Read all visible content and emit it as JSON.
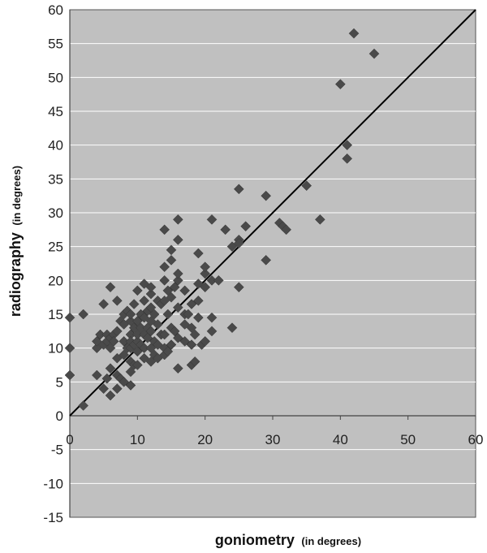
{
  "chart_data": {
    "type": "scatter",
    "title": "",
    "xlabel": "goniometry",
    "xlabel_unit": "(in degrees)",
    "ylabel": "radiography",
    "ylabel_unit": "(in degrees)",
    "xlim": [
      0,
      60
    ],
    "ylim": [
      -15,
      60
    ],
    "x_ticks": [
      "0",
      "10",
      "20",
      "30",
      "40",
      "50",
      "60"
    ],
    "y_ticks": [
      "-15",
      "-10",
      "-5",
      "0",
      "5",
      "10",
      "15",
      "20",
      "25",
      "30",
      "35",
      "40",
      "45",
      "50",
      "55",
      "60"
    ],
    "grid": "horizontal",
    "background_color": "#c0c0c0",
    "marker_color": "#4a4a4a",
    "marker": "diamond",
    "reference_line": {
      "from": [
        0,
        0
      ],
      "to": [
        60,
        60
      ]
    },
    "legend": "none",
    "points": [
      [
        0,
        14.5
      ],
      [
        0,
        10
      ],
      [
        0,
        6
      ],
      [
        2,
        15
      ],
      [
        2,
        1.5
      ],
      [
        4,
        6
      ],
      [
        4,
        10
      ],
      [
        4,
        11
      ],
      [
        4.5,
        12
      ],
      [
        5,
        10.5
      ],
      [
        5,
        4
      ],
      [
        5,
        16.5
      ],
      [
        5.5,
        5.5
      ],
      [
        5.5,
        12
      ],
      [
        5.5,
        11
      ],
      [
        6,
        3
      ],
      [
        6,
        7
      ],
      [
        6,
        10
      ],
      [
        6,
        11.5
      ],
      [
        6,
        19
      ],
      [
        6.5,
        12
      ],
      [
        6.5,
        11
      ],
      [
        7,
        4
      ],
      [
        7,
        6
      ],
      [
        7,
        8.5
      ],
      [
        7,
        12.5
      ],
      [
        7,
        17
      ],
      [
        7.5,
        14
      ],
      [
        7.5,
        5.5
      ],
      [
        8,
        5
      ],
      [
        8,
        9
      ],
      [
        8,
        11
      ],
      [
        8,
        15
      ],
      [
        8,
        13.5
      ],
      [
        8.5,
        10
      ],
      [
        8.5,
        15.5
      ],
      [
        9,
        4.5
      ],
      [
        9,
        6.5
      ],
      [
        9,
        8
      ],
      [
        9,
        10
      ],
      [
        9,
        12
      ],
      [
        9,
        14
      ],
      [
        9,
        15
      ],
      [
        9,
        11
      ],
      [
        9.5,
        13
      ],
      [
        9.5,
        10.5
      ],
      [
        9.5,
        7.5
      ],
      [
        9.5,
        16.5
      ],
      [
        10,
        9.5
      ],
      [
        10,
        11
      ],
      [
        10,
        12
      ],
      [
        10,
        14
      ],
      [
        10,
        7.5
      ],
      [
        10,
        18.5
      ],
      [
        10.5,
        10.5
      ],
      [
        10.5,
        13
      ],
      [
        10.5,
        15
      ],
      [
        11,
        8.5
      ],
      [
        11,
        10
      ],
      [
        11,
        12
      ],
      [
        11,
        14.5
      ],
      [
        11,
        17
      ],
      [
        11,
        19.5
      ],
      [
        11.5,
        11.5
      ],
      [
        11.5,
        15.5
      ],
      [
        11.5,
        13
      ],
      [
        12,
        8
      ],
      [
        12,
        10
      ],
      [
        12,
        12.5
      ],
      [
        12,
        14
      ],
      [
        12,
        16
      ],
      [
        12,
        18
      ],
      [
        12,
        19
      ],
      [
        12.5,
        11
      ],
      [
        12.5,
        15
      ],
      [
        12.5,
        9
      ],
      [
        13,
        10.5
      ],
      [
        13,
        13.5
      ],
      [
        13,
        17
      ],
      [
        13,
        8.5
      ],
      [
        13.5,
        16.5
      ],
      [
        13.5,
        12
      ],
      [
        14,
        9
      ],
      [
        14,
        10
      ],
      [
        14,
        12
      ],
      [
        14,
        17
      ],
      [
        14,
        20
      ],
      [
        14,
        22
      ],
      [
        14,
        27.5
      ],
      [
        14.5,
        9.5
      ],
      [
        14.5,
        15
      ],
      [
        14.5,
        18.5
      ],
      [
        15,
        10.5
      ],
      [
        15,
        13
      ],
      [
        15,
        17.5
      ],
      [
        15,
        23
      ],
      [
        15,
        24.5
      ],
      [
        15.5,
        12.5
      ],
      [
        15.5,
        19
      ],
      [
        16,
        7
      ],
      [
        16,
        11.5
      ],
      [
        16,
        16
      ],
      [
        16,
        20
      ],
      [
        16,
        21
      ],
      [
        16,
        26
      ],
      [
        16,
        29
      ],
      [
        17,
        11
      ],
      [
        17,
        13.5
      ],
      [
        17,
        15
      ],
      [
        17,
        18.5
      ],
      [
        17.5,
        15
      ],
      [
        18,
        7.5
      ],
      [
        18,
        10.5
      ],
      [
        18,
        13
      ],
      [
        18,
        16.5
      ],
      [
        18.5,
        12
      ],
      [
        18.5,
        8
      ],
      [
        19,
        14.5
      ],
      [
        19,
        17
      ],
      [
        19,
        19.5
      ],
      [
        19,
        24
      ],
      [
        19.5,
        10.5
      ],
      [
        20,
        11
      ],
      [
        20,
        21
      ],
      [
        20,
        22
      ],
      [
        20,
        19
      ],
      [
        21,
        29
      ],
      [
        21,
        12.5
      ],
      [
        21,
        14.5
      ],
      [
        21,
        20
      ],
      [
        22,
        20
      ],
      [
        23,
        27.5
      ],
      [
        24,
        13
      ],
      [
        24,
        25
      ],
      [
        25,
        33.5
      ],
      [
        25,
        26
      ],
      [
        25,
        19
      ],
      [
        25,
        25.5
      ],
      [
        26,
        28
      ],
      [
        29,
        32.5
      ],
      [
        29,
        23
      ],
      [
        31,
        28.5
      ],
      [
        31.5,
        28
      ],
      [
        32,
        27.5
      ],
      [
        35,
        34
      ],
      [
        37,
        29
      ],
      [
        40,
        49
      ],
      [
        41,
        40
      ],
      [
        41,
        38
      ],
      [
        42,
        56.5
      ],
      [
        45,
        53.5
      ]
    ]
  }
}
